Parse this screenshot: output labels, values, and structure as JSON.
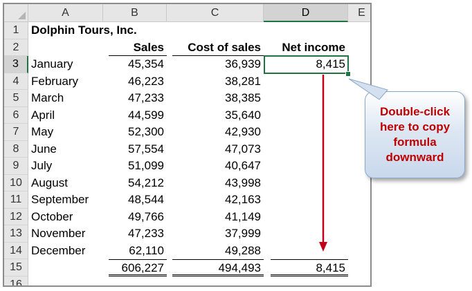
{
  "columns": [
    "A",
    "B",
    "C",
    "D",
    "E"
  ],
  "active_column": "D",
  "active_row": "3",
  "rows": [
    {
      "num": "1",
      "a": "Dolphin Tours, Inc.",
      "b": "",
      "c": "",
      "d": ""
    },
    {
      "num": "2",
      "a": "",
      "b": "Sales",
      "c": "Cost of sales",
      "d": "Net income"
    },
    {
      "num": "3",
      "a": "January",
      "b": "45,354",
      "c": "36,939",
      "d": "8,415"
    },
    {
      "num": "4",
      "a": "February",
      "b": "46,223",
      "c": "38,281",
      "d": ""
    },
    {
      "num": "5",
      "a": "March",
      "b": "47,233",
      "c": "38,385",
      "d": ""
    },
    {
      "num": "6",
      "a": "April",
      "b": "44,599",
      "c": "35,640",
      "d": ""
    },
    {
      "num": "7",
      "a": "May",
      "b": "52,300",
      "c": "42,930",
      "d": ""
    },
    {
      "num": "8",
      "a": "June",
      "b": "57,554",
      "c": "47,073",
      "d": ""
    },
    {
      "num": "9",
      "a": "July",
      "b": "51,099",
      "c": "40,647",
      "d": ""
    },
    {
      "num": "10",
      "a": "August",
      "b": "54,212",
      "c": "43,998",
      "d": ""
    },
    {
      "num": "11",
      "a": "September",
      "b": "48,544",
      "c": "42,163",
      "d": ""
    },
    {
      "num": "12",
      "a": "October",
      "b": "49,766",
      "c": "41,149",
      "d": ""
    },
    {
      "num": "13",
      "a": "November",
      "b": "47,233",
      "c": "37,999",
      "d": ""
    },
    {
      "num": "14",
      "a": "December",
      "b": "62,110",
      "c": "49,288",
      "d": ""
    },
    {
      "num": "15",
      "a": "",
      "b": "606,227",
      "c": "494,493",
      "d": "8,415"
    },
    {
      "num": "16",
      "a": "",
      "b": "",
      "c": "",
      "d": ""
    }
  ],
  "callout": {
    "text": "Double-click\nhere to copy\nformula\ndownward"
  },
  "colors": {
    "selection": "#217346",
    "callout_text": "#c00000",
    "arrow": "#c0001a"
  }
}
